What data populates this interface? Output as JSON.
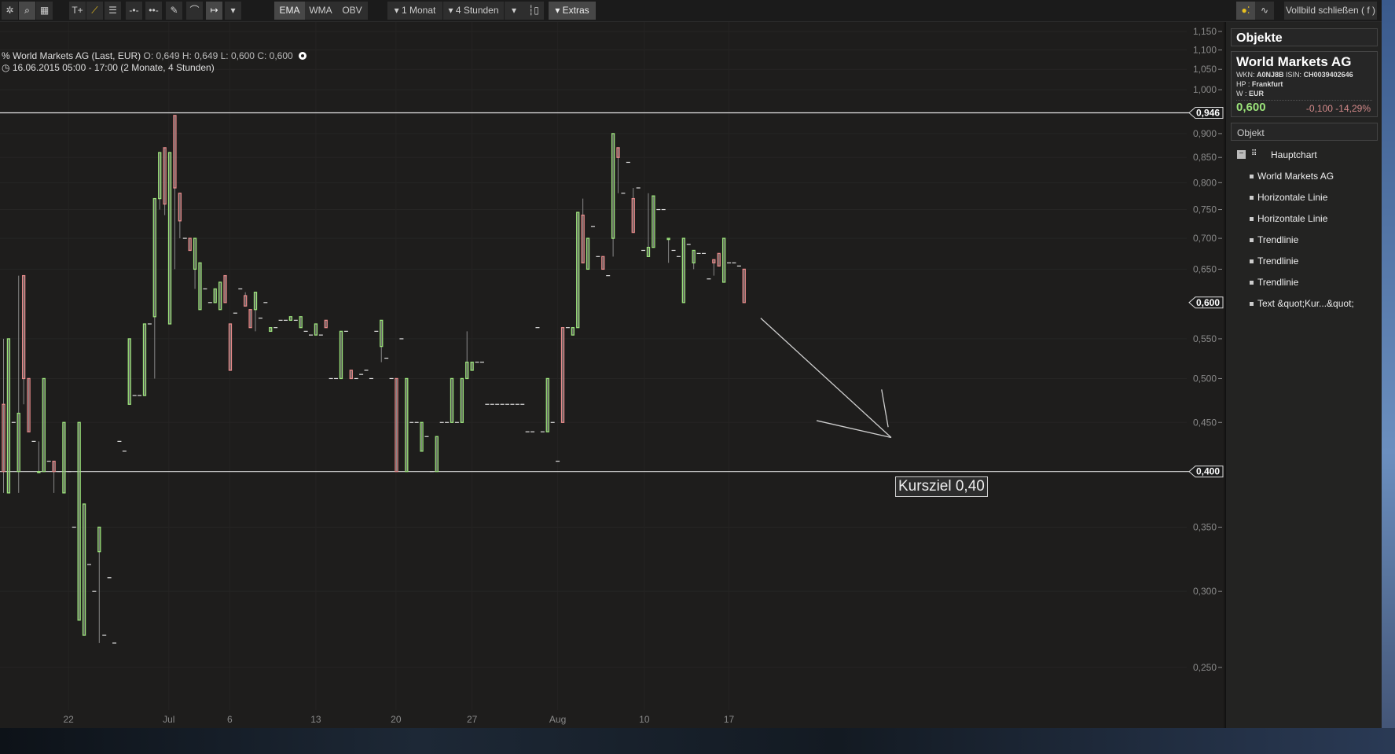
{
  "toolbar": {
    "tools": [
      "settings-icon",
      "zoom-icon",
      "grid-icon",
      "text-tool-icon",
      "trendline-tool-icon",
      "fibonacci-icon",
      "hline-icon",
      "channel-icon",
      "pencil-icon",
      "arc-icon",
      "measure-icon",
      "dropdown-icon"
    ],
    "indicators": [
      "EMA",
      "WMA",
      "OBV"
    ],
    "period": "1 Monat",
    "interval": "4 Stunden",
    "extras": "Extras",
    "close_fullscreen": "Vollbild schließen ( f )"
  },
  "info": {
    "title": "World Markets AG (Last, EUR)",
    "o": "O: 0,649",
    "h": "H: 0,649",
    "l": "L: 0,600",
    "c": "C: 0,600",
    "range": "16.06.2015 05:00 - 17:00 (2 Monate, 4 Stunden)"
  },
  "panel": {
    "header": "Objekte",
    "name": "World Markets AG",
    "wkn_label": "WKN:",
    "wkn": "A0NJ8B",
    "isin_label": "ISIN:",
    "isin": "CH0039402646",
    "hp_label": "HP :",
    "hp": "Frankfurt",
    "w_label": "W :",
    "w": "EUR",
    "price": "0,600",
    "change": "-0,100",
    "change_pct": "-14,29%",
    "objekt": "Objekt",
    "root": "Hauptchart",
    "items": [
      "World Markets AG",
      "Horizontale Linie",
      "Horizontale Linie",
      "Trendlinie",
      "Trendlinie",
      "Trendlinie",
      "Text &quot;Kur...&quot;"
    ]
  },
  "colors": {
    "up": "#9be37a",
    "down": "#e88a8a",
    "price_up": "#9be37a",
    "change_down": "#d48a8a",
    "background": "#1e1d1c"
  },
  "chart_data": {
    "type": "candlestick",
    "scale": "log",
    "ylim": [
      0.235,
      1.16
    ],
    "yticks": [
      "1,150",
      "1,100",
      "1,050",
      "1,000",
      "0,900",
      "0,850",
      "0,800",
      "0,750",
      "0,700",
      "0,650",
      "0,550",
      "0,500",
      "0,450",
      "0,350",
      "0,300",
      "0,250"
    ],
    "ytick_values": [
      1.15,
      1.1,
      1.05,
      1.0,
      0.9,
      0.85,
      0.8,
      0.75,
      0.7,
      0.65,
      0.55,
      0.5,
      0.45,
      0.35,
      0.3,
      0.25
    ],
    "xticks": [
      {
        "label": "22",
        "bar": 13.9
      },
      {
        "label": "Jul",
        "bar": 33.8
      },
      {
        "label": "6",
        "bar": 45.9
      },
      {
        "label": "13",
        "bar": 63
      },
      {
        "label": "20",
        "bar": 78.9
      },
      {
        "label": "27",
        "bar": 94
      },
      {
        "label": "Aug",
        "bar": 111
      },
      {
        "label": "10",
        "bar": 128.2
      },
      {
        "label": "17",
        "bar": 145
      }
    ],
    "hlines": [
      {
        "value": 0.946,
        "label": "0,946"
      },
      {
        "value": 0.4,
        "label": "0,400"
      }
    ],
    "last_price": {
      "value": 0.6,
      "label": "0,600"
    },
    "annotation": {
      "text": "Kursziel 0,40"
    },
    "trendlines": [
      [
        [
          151.3,
          0.578
        ],
        [
          177.2,
          0.434
        ]
      ],
      [
        [
          162.4,
          0.452
        ],
        [
          177.2,
          0.434
        ]
      ],
      [
        [
          175.3,
          0.487
        ],
        [
          176.6,
          0.445
        ]
      ]
    ],
    "bars": [
      [
        0.47,
        0.55,
        0.38,
        0.4
      ],
      [
        0.38,
        0.55,
        0.38,
        0.55
      ],
      0.45,
      [
        0.4,
        0.64,
        0.38,
        0.46
      ],
      [
        0.64,
        0.64,
        0.47,
        0.5
      ],
      [
        0.5,
        0.5,
        0.44,
        0.44
      ],
      0.43,
      [
        0.4,
        0.43,
        0.4,
        0.4
      ],
      [
        0.4,
        0.5,
        0.4,
        0.5
      ],
      0.41,
      [
        0.41,
        0.41,
        0.38,
        0.4
      ],
      0.4,
      [
        0.38,
        0.45,
        0.38,
        0.45
      ],
      0.4,
      0.35,
      [
        0.28,
        0.45,
        0.28,
        0.45
      ],
      [
        0.27,
        0.37,
        0.27,
        0.37
      ],
      0.32,
      0.3,
      [
        0.33,
        0.35,
        0.265,
        0.35
      ],
      0.27,
      0.31,
      0.265,
      0.43,
      0.42,
      [
        0.47,
        0.55,
        0.47,
        0.55
      ],
      0.48,
      0.48,
      [
        0.48,
        0.57,
        0.48,
        0.57
      ],
      0.57,
      [
        0.58,
        0.77,
        0.5,
        0.77
      ],
      [
        0.77,
        0.86,
        0.75,
        0.86
      ],
      [
        0.87,
        0.87,
        0.74,
        0.76
      ],
      [
        0.57,
        0.86,
        0.57,
        0.86
      ],
      [
        0.94,
        0.94,
        0.65,
        0.79
      ],
      [
        0.78,
        0.78,
        0.7,
        0.73
      ],
      0.7,
      [
        0.7,
        0.7,
        0.68,
        0.68
      ],
      [
        0.65,
        0.7,
        0.62,
        0.7
      ],
      [
        0.59,
        0.66,
        0.59,
        0.66
      ],
      0.62,
      0.6,
      [
        0.6,
        0.62,
        0.6,
        0.62
      ],
      [
        0.59,
        0.63,
        0.59,
        0.63
      ],
      [
        0.64,
        0.64,
        0.6,
        0.6
      ],
      [
        0.57,
        0.57,
        0.51,
        0.51
      ],
      0.585,
      0.62,
      [
        0.61,
        0.615,
        0.595,
        0.595
      ],
      [
        0.59,
        0.59,
        0.565,
        0.565
      ],
      [
        0.59,
        0.615,
        0.56,
        0.615
      ],
      0.578,
      0.6,
      [
        0.56,
        0.565,
        0.56,
        0.565
      ],
      0.565,
      0.575,
      0.575,
      [
        0.575,
        0.58,
        0.575,
        0.58
      ],
      0.575,
      [
        0.565,
        0.58,
        0.565,
        0.58
      ],
      0.56,
      0.555,
      [
        0.555,
        0.57,
        0.555,
        0.57
      ],
      0.555,
      [
        0.575,
        0.575,
        0.565,
        0.565
      ],
      0.5,
      0.5,
      [
        0.5,
        0.56,
        0.5,
        0.56
      ],
      0.56,
      [
        0.51,
        0.51,
        0.5,
        0.5
      ],
      0.5,
      0.505,
      0.51,
      0.5,
      0.56,
      [
        0.54,
        0.575,
        0.52,
        0.575
      ],
      0.525,
      0.5,
      [
        0.5,
        0.5,
        0.4,
        0.4
      ],
      0.55,
      [
        0.4,
        0.5,
        0.4,
        0.5
      ],
      0.45,
      0.45,
      [
        0.42,
        0.45,
        0.42,
        0.45
      ],
      0.435,
      0.4,
      [
        0.4,
        0.435,
        0.4,
        0.435
      ],
      0.45,
      0.45,
      [
        0.45,
        0.5,
        0.45,
        0.5
      ],
      0.45,
      [
        0.45,
        0.5,
        0.45,
        0.5
      ],
      [
        0.5,
        0.56,
        0.5,
        0.52
      ],
      [
        0.51,
        0.52,
        0.51,
        0.52
      ],
      0.52,
      0.52,
      0.47,
      0.47,
      0.47,
      0.47,
      0.47,
      0.47,
      0.47,
      0.47,
      0.44,
      0.44,
      0.565,
      0.44,
      [
        0.44,
        0.5,
        0.44,
        0.5
      ],
      0.45,
      0.41,
      [
        0.565,
        0.565,
        0.45,
        0.45
      ],
      0.565,
      [
        0.555,
        0.565,
        0.555,
        0.565
      ],
      [
        0.565,
        0.745,
        0.565,
        0.745
      ],
      [
        0.74,
        0.77,
        0.66,
        0.66
      ],
      [
        0.65,
        0.7,
        0.65,
        0.7
      ],
      0.72,
      0.67,
      [
        0.67,
        0.67,
        0.65,
        0.65
      ],
      0.64,
      [
        0.7,
        0.9,
        0.67,
        0.9
      ],
      [
        0.87,
        0.87,
        0.78,
        0.85
      ],
      0.78,
      0.84,
      [
        0.77,
        0.79,
        0.71,
        0.71
      ],
      0.79,
      0.68,
      [
        0.67,
        0.78,
        0.67,
        0.685
      ],
      [
        0.685,
        0.775,
        0.685,
        0.775
      ],
      0.75,
      0.75,
      [
        0.7,
        0.7,
        0.66,
        0.7
      ],
      0.68,
      0.67,
      [
        0.6,
        0.7,
        0.6,
        0.7
      ],
      0.69,
      [
        0.66,
        0.68,
        0.65,
        0.68
      ],
      0.675,
      0.675,
      0.635,
      [
        0.665,
        0.665,
        0.64,
        0.66
      ],
      [
        0.675,
        0.675,
        0.655,
        0.655
      ],
      [
        0.63,
        0.7,
        0.63,
        0.7
      ],
      0.66,
      0.66,
      0.655,
      [
        0.65,
        0.65,
        0.6,
        0.6
      ]
    ]
  }
}
